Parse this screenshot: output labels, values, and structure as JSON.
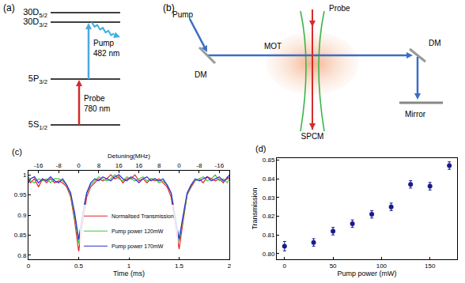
{
  "panels": {
    "a": {
      "label": "(a)",
      "levels": [
        {
          "text": "30D",
          "sub": "5/2"
        },
        {
          "text": "30D",
          "sub": "3/2"
        },
        {
          "text": "5P",
          "sub": "3/2"
        },
        {
          "text": "5S",
          "sub": "1/2"
        }
      ],
      "pump": {
        "name": "Pump",
        "wavelength": "482 nm"
      },
      "probe": {
        "name": "Probe",
        "wavelength": "780 nm"
      }
    },
    "b": {
      "label": "(b)",
      "pump": "Pump",
      "probe": "Probe",
      "mot": "MOT",
      "dm_left": "DM",
      "dm_right": "DM",
      "mirror": "Mirror",
      "detector": "SPCM"
    }
  },
  "chart_data": [
    {
      "type": "line",
      "label": "(c)",
      "x_label": "Time (ms)",
      "x2_label": "Detuning(MHz)",
      "x": [
        0,
        0.02,
        0.06,
        0.1,
        0.14,
        0.18,
        0.22,
        0.26,
        0.3,
        0.34,
        0.38,
        0.42,
        0.46,
        0.5,
        0.54,
        0.58,
        0.62,
        0.66,
        0.7,
        0.74,
        0.78,
        0.82,
        0.86,
        0.9,
        0.94,
        0.98,
        1.02,
        1.06,
        1.1,
        1.14,
        1.18,
        1.22,
        1.26,
        1.3,
        1.34,
        1.38,
        1.42,
        1.46,
        1.5,
        1.54,
        1.58,
        1.62,
        1.66,
        1.7,
        1.74,
        1.78,
        1.82,
        1.86,
        1.9,
        1.94,
        1.98,
        2
      ],
      "series": [
        {
          "name": "Normalised Transmission",
          "color": "#e8202a",
          "values": [
            0.99,
            0.98,
            0.99,
            0.97,
            0.99,
            0.98,
            0.99,
            0.98,
            0.985,
            0.98,
            0.97,
            0.945,
            0.885,
            0.81,
            0.88,
            0.945,
            0.97,
            0.98,
            0.99,
            0.985,
            0.99,
            1.0,
            0.99,
            0.995,
            0.98,
            0.99,
            0.99,
            1.0,
            0.985,
            0.99,
            0.98,
            0.99,
            0.985,
            0.99,
            0.98,
            0.97,
            0.945,
            0.88,
            0.815,
            0.885,
            0.95,
            0.97,
            0.985,
            0.99,
            0.98,
            0.995,
            0.99,
            0.985,
            0.99,
            0.98,
            0.995,
            0.99
          ]
        },
        {
          "name": "Pump power 120mW",
          "color": "#3cc83c",
          "values": [
            0.995,
            0.985,
            0.98,
            0.99,
            0.985,
            0.99,
            0.98,
            0.99,
            0.99,
            0.985,
            0.975,
            0.95,
            0.895,
            0.83,
            0.9,
            0.955,
            0.975,
            0.985,
            0.995,
            0.99,
            0.985,
            0.99,
            1.0,
            0.99,
            0.985,
            0.995,
            0.99,
            0.985,
            0.99,
            0.995,
            0.985,
            0.99,
            0.99,
            0.98,
            0.985,
            0.975,
            0.955,
            0.9,
            0.835,
            0.895,
            0.95,
            0.975,
            0.985,
            0.99,
            0.995,
            0.985,
            0.99,
            1.0,
            0.985,
            0.99,
            0.98,
            0.99
          ]
        },
        {
          "name": "Pump power 170mW",
          "color": "#2a2adc",
          "values": [
            0.98,
            0.99,
            0.995,
            0.98,
            0.99,
            0.985,
            0.995,
            0.985,
            0.98,
            0.99,
            0.975,
            0.955,
            0.905,
            0.84,
            0.905,
            0.955,
            0.98,
            0.99,
            0.985,
            0.995,
            0.99,
            0.985,
            0.995,
            1.0,
            0.99,
            0.985,
            0.995,
            0.99,
            0.98,
            0.99,
            0.995,
            0.985,
            0.99,
            0.985,
            0.99,
            0.975,
            0.955,
            0.9,
            0.84,
            0.9,
            0.955,
            0.975,
            0.99,
            0.985,
            0.99,
            0.995,
            0.985,
            0.99,
            0.995,
            0.985,
            0.99,
            1.0
          ]
        }
      ],
      "xlim": [
        0,
        2
      ],
      "xticks": [
        0,
        0.5,
        1,
        1.5,
        2
      ],
      "x2lim": [
        0,
        2
      ],
      "x2ticks": [
        {
          "value": 0.1,
          "label": "-16"
        },
        {
          "value": 0.3,
          "label": "-8"
        },
        {
          "value": 0.5,
          "label": "0"
        },
        {
          "value": 0.7,
          "label": "8"
        },
        {
          "value": 0.9,
          "label": "16"
        },
        {
          "value": 1.1,
          "label": "16"
        },
        {
          "value": 1.3,
          "label": "8"
        },
        {
          "value": 1.5,
          "label": "0"
        },
        {
          "value": 1.7,
          "label": "-8"
        },
        {
          "value": 1.9,
          "label": "-16"
        }
      ],
      "ylim": [
        0.79,
        1.01
      ],
      "yticks": [
        0.8,
        0.85,
        0.9,
        0.95,
        1
      ],
      "grid": false,
      "legend": "bottom"
    },
    {
      "type": "scatter",
      "label": "(d)",
      "x_label": "Pump power (mW)",
      "y_label": "Transmission",
      "x": [
        0,
        30,
        50,
        70,
        90,
        110,
        130,
        150,
        170
      ],
      "values": [
        0.804,
        0.806,
        0.812,
        0.816,
        0.821,
        0.825,
        0.837,
        0.836,
        0.847
      ],
      "errors": [
        0.0025,
        0.002,
        0.002,
        0.002,
        0.002,
        0.002,
        0.002,
        0.002,
        0.002
      ],
      "color": "#1a1a8c",
      "marker": "circle",
      "xlim": [
        -8,
        178
      ],
      "xticks": [
        0,
        50,
        100,
        150
      ],
      "ylim": [
        0.797,
        0.851
      ],
      "yticks": [
        {
          "value": 0.8,
          "label": "0.80"
        },
        0.81,
        0.82,
        0.83,
        0.84,
        0.85
      ],
      "grid": false
    }
  ]
}
